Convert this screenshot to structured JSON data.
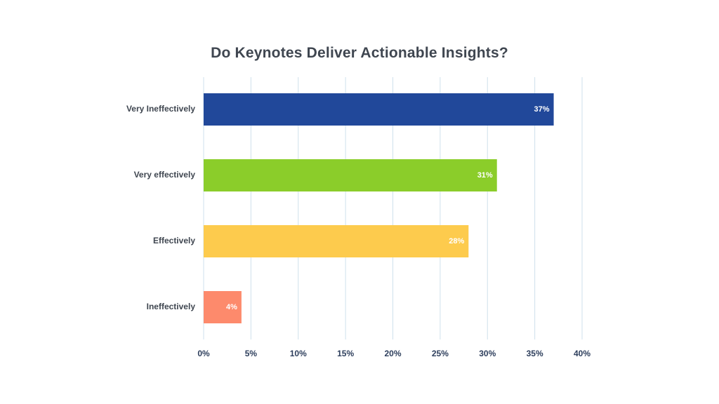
{
  "chart_data": {
    "type": "bar",
    "orientation": "horizontal",
    "title": "Do Keynotes Deliver Actionable Insights?",
    "categories": [
      "Very Ineffectively",
      "Very effectively",
      "Effectively",
      "Ineffectively"
    ],
    "values": [
      37,
      31,
      28,
      4
    ],
    "data_labels": [
      "37%",
      "31%",
      "28%",
      "4%"
    ],
    "colors": [
      "#21489a",
      "#8bcd2a",
      "#fdcb4d",
      "#fd8a6c"
    ],
    "xlim": [
      0,
      40
    ],
    "x_ticks": [
      0,
      5,
      10,
      15,
      20,
      25,
      30,
      35,
      40
    ],
    "x_tick_labels": [
      "0%",
      "5%",
      "10%",
      "15%",
      "20%",
      "25%",
      "30%",
      "35%",
      "40%"
    ],
    "xlabel": "",
    "ylabel": "",
    "grid": true,
    "legend": "none"
  }
}
